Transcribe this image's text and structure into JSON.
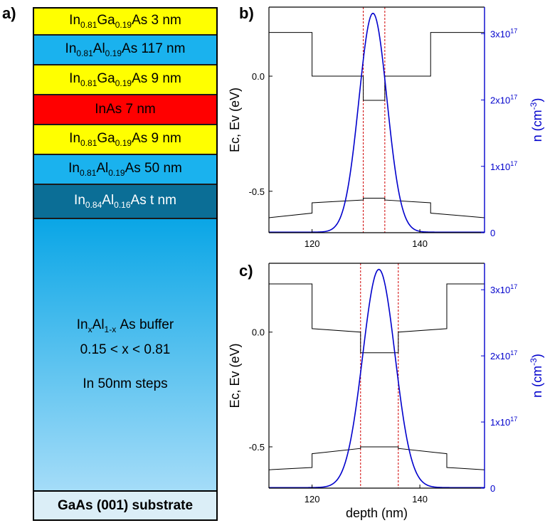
{
  "panel_labels": {
    "a": "a)",
    "b": "b)",
    "c": "c)"
  },
  "layers": [
    {
      "main": "In",
      "sub1": "0.81",
      "mid": "Ga",
      "sub2": "0.19",
      "tail": "As 3 nm",
      "color": "#ffff00"
    },
    {
      "main": "In",
      "sub1": "0.81",
      "mid": "Al",
      "sub2": "0.19",
      "tail": "As 117 nm",
      "color": "#1ab2ee"
    },
    {
      "main": "In",
      "sub1": "0.81",
      "mid": "Ga",
      "sub2": "0.19",
      "tail": "As 9 nm",
      "color": "#ffff00"
    },
    {
      "main": "InAs 7 nm",
      "sub1": "",
      "mid": "",
      "sub2": "",
      "tail": "",
      "color": "#ff0000"
    },
    {
      "main": "In",
      "sub1": "0.81",
      "mid": "Ga",
      "sub2": "0.19",
      "tail": "As 9 nm",
      "color": "#ffff00"
    },
    {
      "main": "In",
      "sub1": "0.81",
      "mid": "Al",
      "sub2": "0.19",
      "tail": "As 50 nm",
      "color": "#1ab2ee"
    },
    {
      "main": "In",
      "sub1": "0.84",
      "mid": "Al",
      "sub2": "0.16",
      "tail": "As t nm",
      "color": "#0b6e96",
      "text_color": "#ffffff"
    }
  ],
  "buffer": {
    "line1_a": "In",
    "line1_sub1": "x",
    "line1_b": "Al",
    "line1_sub2": "1-x",
    "line1_c": "As buffer",
    "line2": "0.15 < x < 0.81",
    "line3": "In 50nm steps",
    "color_top": "#0aa6e6",
    "color_bottom": "#a4dcf8"
  },
  "substrate": {
    "label": "GaAs (001) substrate",
    "color": "#dbeef7"
  },
  "chart_data": [
    {
      "type": "line",
      "panel": "b)",
      "xlabel": "",
      "ylabel_left": "Ec, Ev (eV)",
      "ylabel_right": "n (cm-3)",
      "xlim": [
        112,
        152
      ],
      "ylim_left": [
        -0.68,
        0.3
      ],
      "ylim_right": [
        0,
        3.4e+17
      ],
      "x_ticks": [
        120,
        140
      ],
      "y_left_ticks": [
        {
          "v": 0.0,
          "label": "0.0"
        },
        {
          "v": -0.5,
          "label": "-0.5"
        }
      ],
      "y_right_ticks": [
        {
          "v": 0,
          "label": "0"
        },
        {
          "v": 1e+17,
          "label": "1x10",
          "exp": "17"
        },
        {
          "v": 2e+17,
          "label": "2x10",
          "exp": "17"
        },
        {
          "v": 3e+17,
          "label": "3x10",
          "exp": "17"
        }
      ],
      "series": [
        {
          "axis": "left",
          "color": "#000000",
          "points": [
            [
              112,
              0.19
            ],
            [
              120,
              0.19
            ],
            [
              120,
              0.0
            ],
            [
              129.5,
              0.0
            ],
            [
              129.5,
              -0.105
            ],
            [
              133.5,
              -0.105
            ],
            [
              133.5,
              0.0
            ],
            [
              142,
              0.0
            ],
            [
              142,
              0.19
            ],
            [
              152,
              0.19
            ]
          ]
        },
        {
          "axis": "left",
          "color": "#000000",
          "points": [
            [
              112,
              -0.615
            ],
            [
              120,
              -0.595
            ],
            [
              120,
              -0.55
            ],
            [
              129.5,
              -0.538
            ],
            [
              129.5,
              -0.53
            ],
            [
              133.5,
              -0.53
            ],
            [
              133.5,
              -0.538
            ],
            [
              142,
              -0.55
            ],
            [
              142,
              -0.595
            ],
            [
              152,
              -0.615
            ]
          ]
        },
        {
          "axis": "right",
          "color": "#0000cc",
          "gaussian": {
            "center": 131.3,
            "sigma": 2.6,
            "peak": 3.3e+17,
            "floor": 800000000000000.0
          }
        }
      ],
      "vlines": [
        129.5,
        133.5
      ]
    },
    {
      "type": "line",
      "panel": "c)",
      "xlabel": "depth (nm)",
      "ylabel_left": "Ec, Ev (eV)",
      "ylabel_right": "n (cm-3)",
      "xlim": [
        112,
        152
      ],
      "ylim_left": [
        -0.68,
        0.3
      ],
      "ylim_right": [
        0,
        3.4e+17
      ],
      "x_ticks": [
        120,
        140
      ],
      "y_left_ticks": [
        {
          "v": 0.0,
          "label": "0.0"
        },
        {
          "v": -0.5,
          "label": "-0.5"
        }
      ],
      "y_right_ticks": [
        {
          "v": 0,
          "label": "0"
        },
        {
          "v": 1e+17,
          "label": "1x10",
          "exp": "17"
        },
        {
          "v": 2e+17,
          "label": "2x10",
          "exp": "17"
        },
        {
          "v": 3e+17,
          "label": "3x10",
          "exp": "17"
        }
      ],
      "series": [
        {
          "axis": "left",
          "color": "#000000",
          "points": [
            [
              112,
              0.21
            ],
            [
              120,
              0.21
            ],
            [
              120,
              0.015
            ],
            [
              129,
              0.0
            ],
            [
              129,
              -0.09
            ],
            [
              136,
              -0.09
            ],
            [
              136,
              0.0
            ],
            [
              145,
              0.015
            ],
            [
              145,
              0.21
            ],
            [
              152,
              0.21
            ]
          ]
        },
        {
          "axis": "left",
          "color": "#000000",
          "points": [
            [
              112,
              -0.6
            ],
            [
              120,
              -0.59
            ],
            [
              120,
              -0.53
            ],
            [
              129,
              -0.507
            ],
            [
              129,
              -0.5
            ],
            [
              136,
              -0.5
            ],
            [
              136,
              -0.507
            ],
            [
              145,
              -0.53
            ],
            [
              145,
              -0.59
            ],
            [
              152,
              -0.6
            ]
          ]
        },
        {
          "axis": "right",
          "color": "#0000cc",
          "gaussian": {
            "center": 132.4,
            "sigma": 3.0,
            "peak": 3.3e+17,
            "floor": 800000000000000.0
          }
        }
      ],
      "vlines": [
        129,
        136
      ]
    }
  ]
}
